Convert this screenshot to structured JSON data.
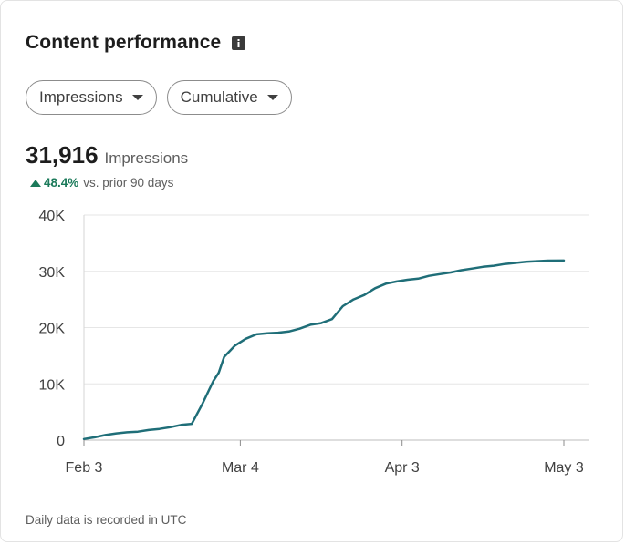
{
  "header": {
    "title": "Content performance",
    "info_icon": "info-icon"
  },
  "filters": [
    {
      "label": "Impressions",
      "icon": "caret-down-icon"
    },
    {
      "label": "Cumulative",
      "icon": "caret-down-icon"
    }
  ],
  "metric": {
    "value": "31,916",
    "unit": "Impressions",
    "change_pct": "48.4%",
    "change_label": "vs. prior 90 days",
    "change_color": "#1b7a5a"
  },
  "chart_data": {
    "type": "line",
    "title": "",
    "xlabel": "",
    "ylabel": "",
    "x_ticks": [
      "Feb 3",
      "Mar 4",
      "Apr 3",
      "May 3"
    ],
    "y_ticks": [
      "0",
      "10K",
      "20K",
      "30K",
      "40K"
    ],
    "ylim": [
      0,
      40000
    ],
    "xlim": [
      "2023-02-03",
      "2023-05-03"
    ],
    "grid": true,
    "legend": "none",
    "line_color": "#1f6e78",
    "series": [
      {
        "x": [
          "2023-02-03",
          "2023-02-05",
          "2023-02-07",
          "2023-02-09",
          "2023-02-11",
          "2023-02-13",
          "2023-02-15",
          "2023-02-17",
          "2023-02-19",
          "2023-02-21",
          "2023-02-23",
          "2023-02-25",
          "2023-02-26",
          "2023-02-27",
          "2023-02-28",
          "2023-03-01",
          "2023-03-03",
          "2023-03-05",
          "2023-03-07",
          "2023-03-09",
          "2023-03-11",
          "2023-03-13",
          "2023-03-15",
          "2023-03-17",
          "2023-03-19",
          "2023-03-21",
          "2023-03-23",
          "2023-03-25",
          "2023-03-27",
          "2023-03-29",
          "2023-03-31",
          "2023-04-02",
          "2023-04-04",
          "2023-04-06",
          "2023-04-08",
          "2023-04-10",
          "2023-04-12",
          "2023-04-14",
          "2023-04-16",
          "2023-04-18",
          "2023-04-20",
          "2023-04-22",
          "2023-04-24",
          "2023-04-26",
          "2023-04-28",
          "2023-04-30",
          "2023-05-03"
        ],
        "y": [
          200,
          500,
          900,
          1200,
          1400,
          1500,
          1800,
          2000,
          2300,
          2700,
          2900,
          6500,
          8500,
          10500,
          12000,
          14800,
          16800,
          18000,
          18800,
          19000,
          19100,
          19300,
          19800,
          20500,
          20800,
          21500,
          23800,
          25000,
          25800,
          27000,
          27800,
          28200,
          28500,
          28700,
          29200,
          29500,
          29800,
          30200,
          30500,
          30800,
          31000,
          31300,
          31500,
          31700,
          31800,
          31900,
          31916
        ]
      }
    ]
  },
  "footnote": "Daily data is recorded in UTC"
}
